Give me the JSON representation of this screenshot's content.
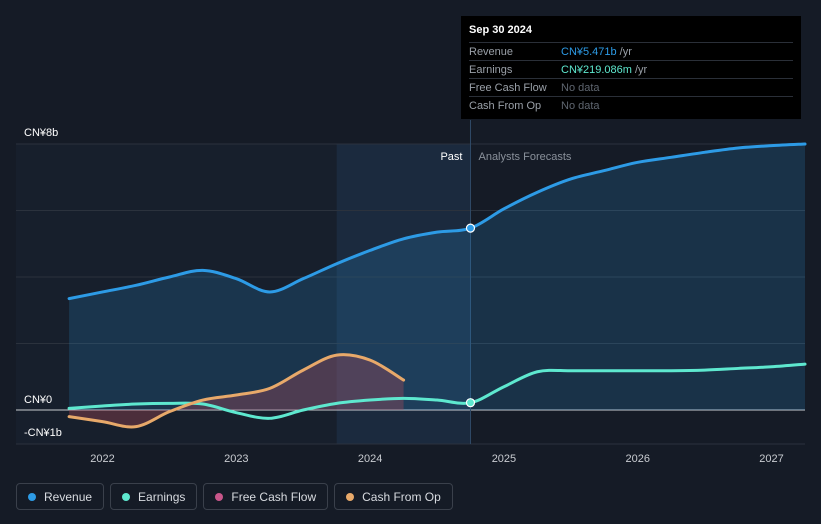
{
  "colors": {
    "revenue": "#2d9be6",
    "earnings": "#5ee8cf",
    "free_cash_flow": "#c8568a",
    "cash_from_op": "#e8a96a",
    "background": "#151b26"
  },
  "tooltip": {
    "date": "Sep 30 2024",
    "rows": [
      {
        "label": "Revenue",
        "value": "CN¥5.471b",
        "unit": "/yr"
      },
      {
        "label": "Earnings",
        "value": "CN¥219.086m",
        "unit": "/yr"
      },
      {
        "label": "Free Cash Flow",
        "value": "No data",
        "unit": ""
      },
      {
        "label": "Cash From Op",
        "value": "No data",
        "unit": ""
      }
    ]
  },
  "legend": [
    {
      "label": "Revenue",
      "color": "#2d9be6"
    },
    {
      "label": "Earnings",
      "color": "#5ee8cf"
    },
    {
      "label": "Free Cash Flow",
      "color": "#c8568a"
    },
    {
      "label": "Cash From Op",
      "color": "#e8a96a"
    }
  ],
  "chart_data": {
    "type": "line",
    "y_tick_labels": [
      {
        "value": 8,
        "label": "CN¥8b"
      },
      {
        "value": 0,
        "label": "CN¥0"
      },
      {
        "value": -1,
        "label": "-CN¥1b"
      }
    ],
    "ylim": [
      -1,
      8
    ],
    "xlim": [
      2021.6,
      2027.25
    ],
    "x_ticks": [
      2022,
      2023,
      2024,
      2025,
      2026,
      2027
    ],
    "past_label": "Past",
    "forecast_label": "Analysts Forecasts",
    "divider_x": 2024.75,
    "highlight_start_x": 2023.75,
    "marker_x": 2024.75,
    "series": [
      {
        "name": "Revenue",
        "key": "revenue",
        "points": [
          [
            2021.75,
            3.35
          ],
          [
            2022.0,
            3.55
          ],
          [
            2022.25,
            3.75
          ],
          [
            2022.5,
            4.0
          ],
          [
            2022.75,
            4.2
          ],
          [
            2023.0,
            3.95
          ],
          [
            2023.25,
            3.55
          ],
          [
            2023.5,
            3.95
          ],
          [
            2023.75,
            4.4
          ],
          [
            2024.0,
            4.8
          ],
          [
            2024.25,
            5.15
          ],
          [
            2024.5,
            5.35
          ],
          [
            2024.75,
            5.47
          ],
          [
            2025.0,
            6.05
          ],
          [
            2025.25,
            6.55
          ],
          [
            2025.5,
            6.95
          ],
          [
            2025.75,
            7.2
          ],
          [
            2026.0,
            7.45
          ],
          [
            2026.25,
            7.6
          ],
          [
            2026.5,
            7.75
          ],
          [
            2026.75,
            7.88
          ],
          [
            2027.0,
            7.95
          ],
          [
            2027.25,
            8.0
          ]
        ],
        "forecast_from": 2024.75,
        "area": true
      },
      {
        "name": "Earnings",
        "key": "earnings",
        "points": [
          [
            2021.75,
            0.05
          ],
          [
            2022.0,
            0.12
          ],
          [
            2022.25,
            0.18
          ],
          [
            2022.5,
            0.2
          ],
          [
            2022.75,
            0.18
          ],
          [
            2023.0,
            -0.08
          ],
          [
            2023.25,
            -0.25
          ],
          [
            2023.5,
            0.0
          ],
          [
            2023.75,
            0.2
          ],
          [
            2024.0,
            0.3
          ],
          [
            2024.25,
            0.35
          ],
          [
            2024.5,
            0.3
          ],
          [
            2024.75,
            0.22
          ],
          [
            2025.0,
            0.7
          ],
          [
            2025.25,
            1.15
          ],
          [
            2025.5,
            1.18
          ],
          [
            2025.75,
            1.18
          ],
          [
            2026.0,
            1.18
          ],
          [
            2026.25,
            1.18
          ],
          [
            2026.5,
            1.2
          ],
          [
            2026.75,
            1.25
          ],
          [
            2027.0,
            1.3
          ],
          [
            2027.25,
            1.38
          ]
        ],
        "forecast_from": 2024.75,
        "area": false
      },
      {
        "name": "Cash From Op",
        "key": "cash_from_op",
        "points": [
          [
            2021.75,
            -0.2
          ],
          [
            2022.0,
            -0.35
          ],
          [
            2022.25,
            -0.5
          ],
          [
            2022.5,
            -0.05
          ],
          [
            2022.75,
            0.3
          ],
          [
            2023.0,
            0.45
          ],
          [
            2023.25,
            0.65
          ],
          [
            2023.5,
            1.2
          ],
          [
            2023.75,
            1.65
          ],
          [
            2024.0,
            1.5
          ],
          [
            2024.25,
            0.9
          ]
        ],
        "area": true
      }
    ]
  }
}
